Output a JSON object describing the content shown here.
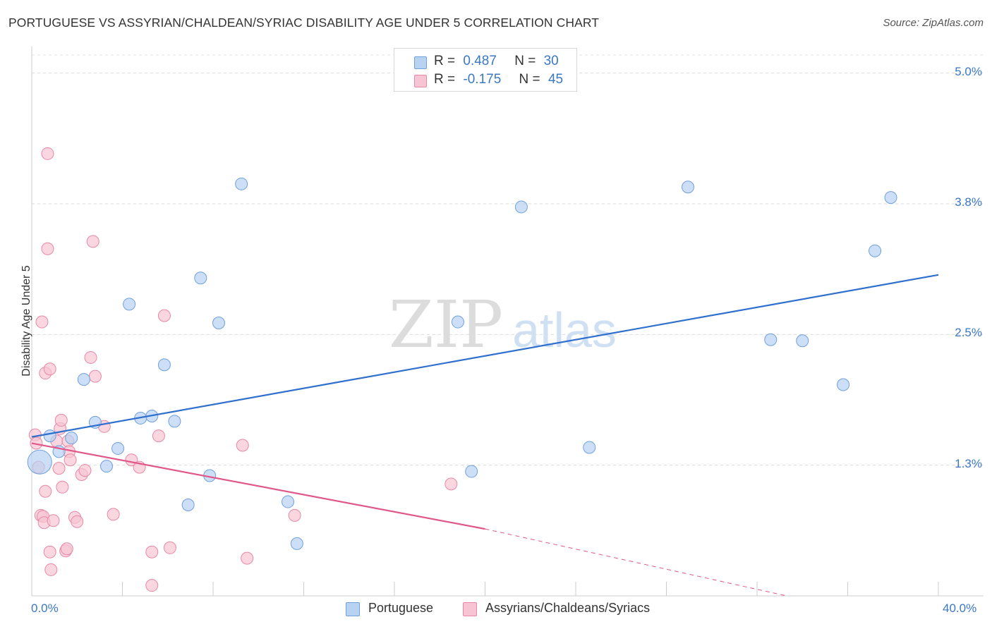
{
  "title": "PORTUGUESE VS ASSYRIAN/CHALDEAN/SYRIAC DISABILITY AGE UNDER 5 CORRELATION CHART",
  "source": "Source: ZipAtlas.com",
  "watermark": {
    "zip": "ZIP",
    "atlas": "atlas"
  },
  "stats": {
    "r_label": "R =",
    "n_label": "N =",
    "portuguese": {
      "r": "0.487",
      "n": "30"
    },
    "assyrian": {
      "r": "-0.175",
      "n": "45"
    }
  },
  "legend": {
    "portuguese": "Portuguese",
    "assyrian": "Assyrians/Chaldeans/Syriacs"
  },
  "colors": {
    "blue_fill": "#b8d2f2",
    "blue_stroke": "#6fa0dc",
    "blue_line": "#2f6fcd",
    "pink_fill": "#f7c4d3",
    "pink_stroke": "#e888a6",
    "pink_line": "#e0588a",
    "tick_text": "#3b78c4"
  },
  "chart_data": {
    "type": "scatter",
    "title": "PORTUGUESE VS ASSYRIAN/CHALDEAN/SYRIAC DISABILITY AGE UNDER 5 CORRELATION CHART",
    "xlabel": "",
    "ylabel": "Disability Age Under 5",
    "x_unit": "%",
    "xlim": [
      0,
      40
    ],
    "ylim": [
      0,
      5.2
    ],
    "x_tick_labels": [
      "0.0%",
      "40.0%"
    ],
    "y_ticks": [
      {
        "value": 1.25,
        "label": "1.3%"
      },
      {
        "value": 2.5,
        "label": "2.5%"
      },
      {
        "value": 3.75,
        "label": "3.8%"
      },
      {
        "value": 5.0,
        "label": "5.0%"
      }
    ],
    "series": [
      {
        "name": "Portuguese",
        "r": 0.487,
        "n": 30,
        "trend": {
          "x0": 0,
          "y0": 1.52,
          "x1": 40,
          "y1": 3.07
        },
        "points": [
          {
            "x": 0.35,
            "y": 1.28,
            "big": true
          },
          {
            "x": 0.8,
            "y": 1.53
          },
          {
            "x": 1.2,
            "y": 1.38
          },
          {
            "x": 1.75,
            "y": 1.51
          },
          {
            "x": 2.3,
            "y": 2.07
          },
          {
            "x": 2.8,
            "y": 1.66
          },
          {
            "x": 3.3,
            "y": 1.24
          },
          {
            "x": 3.8,
            "y": 1.41
          },
          {
            "x": 4.3,
            "y": 2.79
          },
          {
            "x": 4.8,
            "y": 1.7
          },
          {
            "x": 5.3,
            "y": 1.72
          },
          {
            "x": 5.85,
            "y": 2.21
          },
          {
            "x": 6.3,
            "y": 1.67
          },
          {
            "x": 6.9,
            "y": 0.87
          },
          {
            "x": 7.45,
            "y": 3.04
          },
          {
            "x": 7.85,
            "y": 1.15
          },
          {
            "x": 8.25,
            "y": 2.61
          },
          {
            "x": 9.25,
            "y": 3.94
          },
          {
            "x": 11.3,
            "y": 0.9
          },
          {
            "x": 11.7,
            "y": 0.5
          },
          {
            "x": 18.8,
            "y": 2.62
          },
          {
            "x": 19.4,
            "y": 1.19
          },
          {
            "x": 21.6,
            "y": 3.72
          },
          {
            "x": 24.6,
            "y": 1.42
          },
          {
            "x": 28.95,
            "y": 3.91
          },
          {
            "x": 32.6,
            "y": 2.45
          },
          {
            "x": 34.0,
            "y": 2.44
          },
          {
            "x": 35.8,
            "y": 2.02
          },
          {
            "x": 37.2,
            "y": 3.3
          },
          {
            "x": 37.9,
            "y": 3.81
          }
        ]
      },
      {
        "name": "Assyrians/Chaldeans/Syriacs",
        "r": -0.175,
        "n": 45,
        "trend": {
          "x0": 0,
          "y0": 1.46,
          "x1": 20,
          "y1": 0.64,
          "dashed_to_x": 33.3,
          "dashed_to_y": 0.0
        },
        "points": [
          {
            "x": 0.15,
            "y": 1.54
          },
          {
            "x": 0.2,
            "y": 1.46
          },
          {
            "x": 0.3,
            "y": 1.23
          },
          {
            "x": 0.4,
            "y": 0.77
          },
          {
            "x": 0.5,
            "y": 0.76
          },
          {
            "x": 0.55,
            "y": 0.7
          },
          {
            "x": 0.45,
            "y": 2.62
          },
          {
            "x": 0.6,
            "y": 2.13
          },
          {
            "x": 0.6,
            "y": 1.0
          },
          {
            "x": 0.7,
            "y": 3.32
          },
          {
            "x": 0.7,
            "y": 4.23
          },
          {
            "x": 0.8,
            "y": 2.17
          },
          {
            "x": 0.8,
            "y": 0.42
          },
          {
            "x": 0.85,
            "y": 0.25
          },
          {
            "x": 0.95,
            "y": 0.72
          },
          {
            "x": 1.1,
            "y": 1.48
          },
          {
            "x": 1.2,
            "y": 1.22
          },
          {
            "x": 1.25,
            "y": 1.6
          },
          {
            "x": 1.3,
            "y": 1.68
          },
          {
            "x": 1.35,
            "y": 1.04
          },
          {
            "x": 1.5,
            "y": 0.43
          },
          {
            "x": 1.55,
            "y": 0.45
          },
          {
            "x": 1.6,
            "y": 1.48
          },
          {
            "x": 1.65,
            "y": 1.38
          },
          {
            "x": 1.7,
            "y": 1.3
          },
          {
            "x": 1.9,
            "y": 0.75
          },
          {
            "x": 2.0,
            "y": 0.71
          },
          {
            "x": 2.2,
            "y": 1.16
          },
          {
            "x": 2.35,
            "y": 1.2
          },
          {
            "x": 2.6,
            "y": 2.28
          },
          {
            "x": 2.7,
            "y": 3.39
          },
          {
            "x": 2.8,
            "y": 2.1
          },
          {
            "x": 3.2,
            "y": 1.62
          },
          {
            "x": 3.6,
            "y": 0.78
          },
          {
            "x": 4.4,
            "y": 1.3
          },
          {
            "x": 4.75,
            "y": 1.23
          },
          {
            "x": 5.3,
            "y": 0.42
          },
          {
            "x": 5.3,
            "y": 0.1
          },
          {
            "x": 5.6,
            "y": 1.53
          },
          {
            "x": 5.85,
            "y": 2.68
          },
          {
            "x": 6.1,
            "y": 0.46
          },
          {
            "x": 9.3,
            "y": 1.44
          },
          {
            "x": 9.5,
            "y": 0.36
          },
          {
            "x": 11.6,
            "y": 0.77
          },
          {
            "x": 18.5,
            "y": 1.07
          }
        ]
      }
    ]
  }
}
